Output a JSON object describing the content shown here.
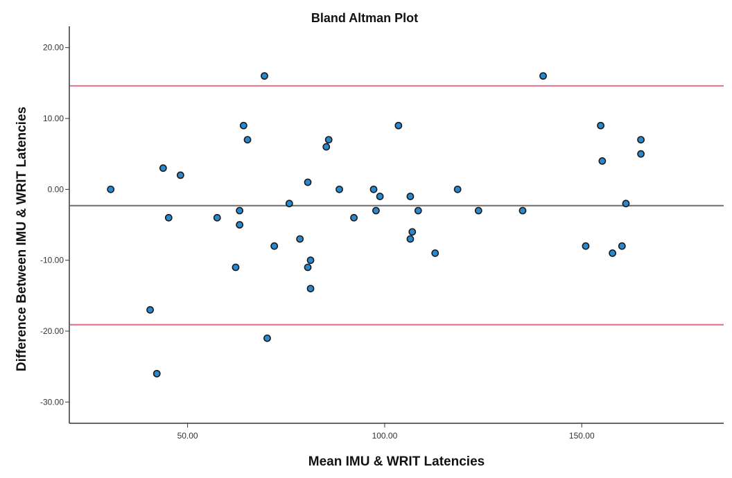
{
  "chart_data": {
    "type": "scatter",
    "title": "Bland Altman Plot",
    "xlabel": "Mean IMU & WRIT Latencies",
    "ylabel": "Difference Between IMU & WRIT Latencies",
    "xlim": [
      20,
      186
    ],
    "ylim": [
      -33,
      23
    ],
    "x_ticks": [
      {
        "value": 50,
        "label": "50.00"
      },
      {
        "value": 100,
        "label": "100.00"
      },
      {
        "value": 150,
        "label": "150.00"
      }
    ],
    "y_ticks": [
      {
        "value": 20,
        "label": "20.00"
      },
      {
        "value": 10,
        "label": "10.00"
      },
      {
        "value": 0,
        "label": "0.00"
      },
      {
        "value": -10,
        "label": "-10.00"
      },
      {
        "value": -20,
        "label": "-20.00"
      },
      {
        "value": -30,
        "label": "-30.00"
      }
    ],
    "grid": false,
    "legend": "none",
    "colors": {
      "point_fill": "#2a88cf",
      "mean_line": "#7a7a7a",
      "limit_lines": "#e07a8c"
    },
    "reference_lines": {
      "mean_difference": -2.3,
      "upper_limit": 14.6,
      "lower_limit": -19.1
    },
    "points": [
      {
        "x": 30.5,
        "y": 0
      },
      {
        "x": 40.5,
        "y": -17
      },
      {
        "x": 42.2,
        "y": -26
      },
      {
        "x": 43.8,
        "y": 3
      },
      {
        "x": 45.2,
        "y": -4
      },
      {
        "x": 48.2,
        "y": 2
      },
      {
        "x": 57.5,
        "y": -4
      },
      {
        "x": 62.2,
        "y": -11
      },
      {
        "x": 63.2,
        "y": -3
      },
      {
        "x": 63.2,
        "y": -5
      },
      {
        "x": 64.2,
        "y": 9
      },
      {
        "x": 65.2,
        "y": 7
      },
      {
        "x": 69.5,
        "y": 16
      },
      {
        "x": 70.2,
        "y": -21
      },
      {
        "x": 72,
        "y": -8
      },
      {
        "x": 75.8,
        "y": -2
      },
      {
        "x": 78.5,
        "y": -7
      },
      {
        "x": 80.5,
        "y": 1
      },
      {
        "x": 80.5,
        "y": -11
      },
      {
        "x": 81.2,
        "y": -10
      },
      {
        "x": 81.2,
        "y": -14
      },
      {
        "x": 85.2,
        "y": 6
      },
      {
        "x": 85.8,
        "y": 7
      },
      {
        "x": 88.5,
        "y": 0
      },
      {
        "x": 92.2,
        "y": -4
      },
      {
        "x": 97.2,
        "y": 0
      },
      {
        "x": 97.8,
        "y": -3
      },
      {
        "x": 98.8,
        "y": -1
      },
      {
        "x": 103.5,
        "y": 9
      },
      {
        "x": 106.5,
        "y": -1
      },
      {
        "x": 106.5,
        "y": -7
      },
      {
        "x": 107,
        "y": -6
      },
      {
        "x": 108.5,
        "y": -3
      },
      {
        "x": 112.8,
        "y": -9
      },
      {
        "x": 118.5,
        "y": 0
      },
      {
        "x": 123.8,
        "y": -3
      },
      {
        "x": 135,
        "y": -3
      },
      {
        "x": 140.2,
        "y": 16
      },
      {
        "x": 151,
        "y": -8
      },
      {
        "x": 154.8,
        "y": 9
      },
      {
        "x": 155.2,
        "y": 4
      },
      {
        "x": 157.8,
        "y": -9
      },
      {
        "x": 160.2,
        "y": -8
      },
      {
        "x": 161.2,
        "y": -2
      },
      {
        "x": 165,
        "y": 7
      },
      {
        "x": 165,
        "y": 5
      }
    ]
  }
}
